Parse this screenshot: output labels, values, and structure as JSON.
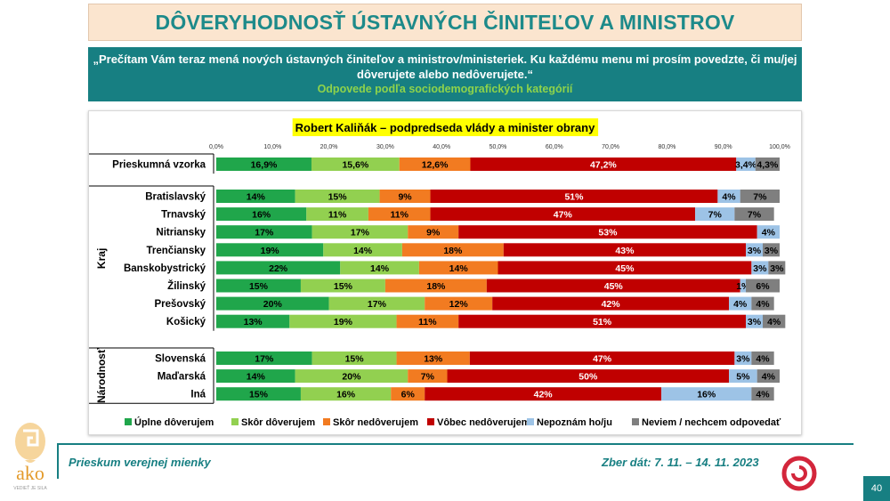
{
  "page": {
    "title": "DÔVERYHODNOSŤ ÚSTAVNÝCH ČINITEĽOV A MINISTROV",
    "question": "„Prečítam Vám teraz mená nových ústavných činiteľov a ministrov/ministeriek. Ku každému menu mi prosím povedzte, či mu/jej dôverujete alebo nedôverujete.“",
    "subtitle": "Odpovede podľa sociodemografických kategórií",
    "footer_left": "Prieskum verejnej mienky",
    "footer_right": "Zber dát: 7. 11. – 14. 11. 2023",
    "page_number": "40",
    "logo_text": "ako",
    "logo_tagline": "VEDIEŤ JE SILA"
  },
  "chart_data": {
    "type": "bar",
    "orientation": "horizontal",
    "stacked": true,
    "title": "Robert Kaliňák – podpredseda vlády a minister obrany",
    "xlim": [
      0,
      100
    ],
    "xticks": [
      "0,0%",
      "10,0%",
      "20,0%",
      "30,0%",
      "40,0%",
      "50,0%",
      "60,0%",
      "70,0%",
      "80,0%",
      "90,0%",
      "100,0%"
    ],
    "legend_position": "bottom",
    "series": [
      {
        "name": "Úplne dôverujem",
        "color": "#20a64b"
      },
      {
        "name": "Skôr dôverujem",
        "color": "#92d050"
      },
      {
        "name": "Skôr nedôverujem",
        "color": "#f27b21"
      },
      {
        "name": "Vôbec nedôverujem",
        "color": "#c00000"
      },
      {
        "name": "Nepoznám ho/ju",
        "color": "#9dc3e6"
      },
      {
        "name": "Neviem / nechcem odpovedať",
        "color": "#7f7f7f"
      }
    ],
    "groups": [
      {
        "label": "",
        "rows": [
          {
            "category": "Prieskumná vzorka",
            "values": [
              16.9,
              15.6,
              12.6,
              47.2,
              3.4,
              4.3
            ],
            "labels": [
              "16,9%",
              "15,6%",
              "12,6%",
              "47,2%",
              "3,4%",
              "4,3%"
            ]
          }
        ]
      },
      {
        "label": "Kraj",
        "rows": [
          {
            "category": "Bratislavský",
            "values": [
              14,
              15,
              9,
              51,
              4,
              7
            ],
            "labels": [
              "14%",
              "15%",
              "9%",
              "51%",
              "4%",
              "7%"
            ]
          },
          {
            "category": "Trnavský",
            "values": [
              16,
              11,
              11,
              47,
              7,
              7
            ],
            "labels": [
              "16%",
              "11%",
              "11%",
              "47%",
              "7%",
              "7%"
            ]
          },
          {
            "category": "Nitriansky",
            "values": [
              17,
              17,
              9,
              53,
              4,
              0
            ],
            "labels": [
              "17%",
              "17%",
              "9%",
              "53%",
              "4%",
              ""
            ]
          },
          {
            "category": "Trenčiansky",
            "values": [
              19,
              14,
              18,
              43,
              3,
              3
            ],
            "labels": [
              "19%",
              "14%",
              "18%",
              "43%",
              "3%",
              "3%"
            ]
          },
          {
            "category": "Banskobystrický",
            "values": [
              22,
              14,
              14,
              45,
              3,
              3
            ],
            "labels": [
              "22%",
              "14%",
              "14%",
              "45%",
              "3%",
              "3%"
            ]
          },
          {
            "category": "Žilinský",
            "values": [
              15,
              15,
              18,
              45,
              1,
              6
            ],
            "labels": [
              "15%",
              "15%",
              "18%",
              "45%",
              "1%",
              "6%"
            ]
          },
          {
            "category": "Prešovský",
            "values": [
              20,
              17,
              12,
              42,
              4,
              4
            ],
            "labels": [
              "20%",
              "17%",
              "12%",
              "42%",
              "4%",
              "4%"
            ]
          },
          {
            "category": "Košický",
            "values": [
              13,
              19,
              11,
              51,
              3,
              4
            ],
            "labels": [
              "13%",
              "19%",
              "11%",
              "51%",
              "3%",
              "4%"
            ]
          }
        ]
      },
      {
        "label": "Národnosť",
        "rows": [
          {
            "category": "Slovenská",
            "values": [
              17,
              15,
              13,
              47,
              3,
              4
            ],
            "labels": [
              "17%",
              "15%",
              "13%",
              "47%",
              "3%",
              "4%"
            ]
          },
          {
            "category": "Maďarská",
            "values": [
              14,
              20,
              7,
              50,
              5,
              4
            ],
            "labels": [
              "14%",
              "20%",
              "7%",
              "50%",
              "5%",
              "4%"
            ]
          },
          {
            "category": "Iná",
            "values": [
              15,
              16,
              6,
              42,
              16,
              4
            ],
            "labels": [
              "15%",
              "16%",
              "6%",
              "42%",
              "16%",
              "4%"
            ]
          }
        ]
      }
    ]
  }
}
